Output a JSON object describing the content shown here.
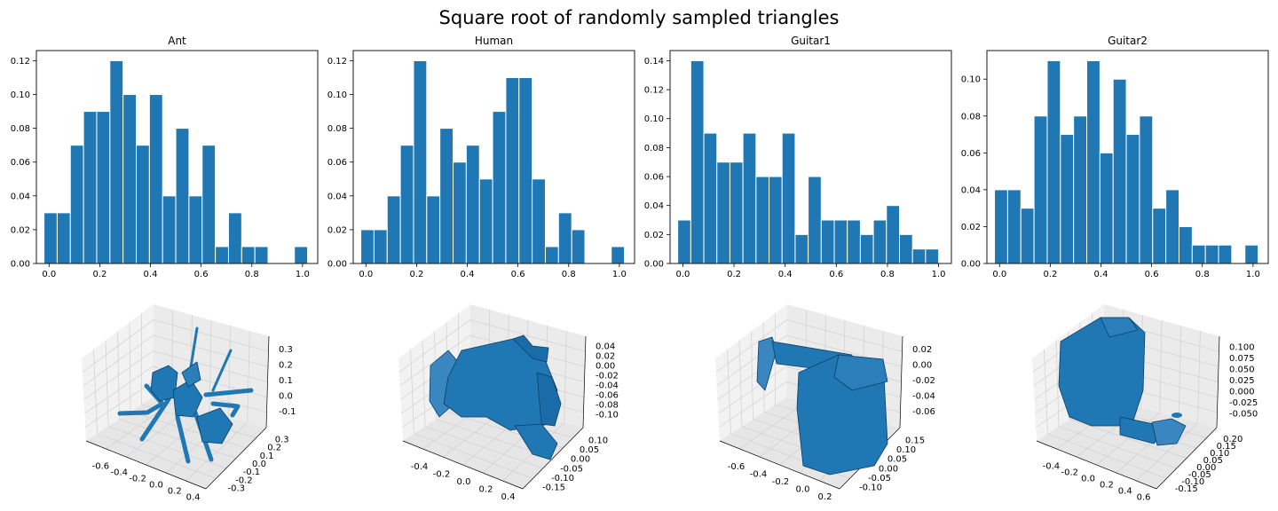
{
  "figure_title": "Square root of randomly sampled triangles",
  "colors": {
    "bar": "#1f77b4",
    "bar_edge": "#ffffff",
    "mesh": "#1f77b4",
    "mesh_dark": "#0d3f66",
    "axis": "#000000"
  },
  "chart_data": [
    {
      "type": "bar",
      "title": "Ant",
      "xlabel": "",
      "ylabel": "",
      "x_ticks": [
        "0.0",
        "0.2",
        "0.4",
        "0.6",
        "0.8",
        "1.0"
      ],
      "y_ticks": [
        "0.00",
        "0.02",
        "0.04",
        "0.06",
        "0.08",
        "0.10",
        "0.12"
      ],
      "xlim": [
        -0.05,
        1.06
      ],
      "ylim": [
        0,
        0.126
      ],
      "bin_edges": [
        -0.02,
        0.032,
        0.084,
        0.136,
        0.188,
        0.24,
        0.292,
        0.344,
        0.396,
        0.448,
        0.5,
        0.552,
        0.604,
        0.656,
        0.708,
        0.76,
        0.812,
        0.864,
        0.916,
        0.968,
        1.02
      ],
      "values": [
        0.03,
        0.03,
        0.07,
        0.09,
        0.09,
        0.12,
        0.1,
        0.07,
        0.1,
        0.04,
        0.08,
        0.04,
        0.07,
        0.01,
        0.03,
        0.01,
        0.01,
        0.0,
        0.0,
        0.01
      ],
      "grid": false
    },
    {
      "type": "bar",
      "title": "Human",
      "xlabel": "",
      "ylabel": "",
      "x_ticks": [
        "0.0",
        "0.2",
        "0.4",
        "0.6",
        "0.8",
        "1.0"
      ],
      "y_ticks": [
        "0.00",
        "0.02",
        "0.04",
        "0.06",
        "0.08",
        "0.10",
        "0.12"
      ],
      "xlim": [
        -0.05,
        1.06
      ],
      "ylim": [
        0,
        0.126
      ],
      "bin_edges": [
        -0.02,
        0.032,
        0.084,
        0.136,
        0.188,
        0.24,
        0.292,
        0.344,
        0.396,
        0.448,
        0.5,
        0.552,
        0.604,
        0.656,
        0.708,
        0.76,
        0.812,
        0.864,
        0.916,
        0.968,
        1.02
      ],
      "values": [
        0.02,
        0.02,
        0.04,
        0.07,
        0.12,
        0.04,
        0.08,
        0.06,
        0.07,
        0.05,
        0.09,
        0.11,
        0.11,
        0.05,
        0.01,
        0.03,
        0.02,
        0.0,
        0.0,
        0.01
      ],
      "grid": false
    },
    {
      "type": "bar",
      "title": "Guitar1",
      "xlabel": "",
      "ylabel": "",
      "x_ticks": [
        "0.0",
        "0.2",
        "0.4",
        "0.6",
        "0.8",
        "1.0"
      ],
      "y_ticks": [
        "0.00",
        "0.02",
        "0.04",
        "0.06",
        "0.08",
        "0.10",
        "0.12",
        "0.14"
      ],
      "xlim": [
        -0.05,
        1.05
      ],
      "ylim": [
        0,
        0.147
      ],
      "bin_edges": [
        -0.02,
        0.031,
        0.082,
        0.133,
        0.184,
        0.235,
        0.286,
        0.337,
        0.388,
        0.439,
        0.49,
        0.541,
        0.592,
        0.643,
        0.694,
        0.745,
        0.796,
        0.847,
        0.898,
        0.949,
        1.0
      ],
      "values": [
        0.03,
        0.14,
        0.09,
        0.07,
        0.07,
        0.09,
        0.06,
        0.06,
        0.09,
        0.02,
        0.06,
        0.03,
        0.03,
        0.03,
        0.02,
        0.03,
        0.04,
        0.02,
        0.01,
        0.01
      ],
      "grid": false
    },
    {
      "type": "bar",
      "title": "Guitar2",
      "xlabel": "",
      "ylabel": "",
      "x_ticks": [
        "0.0",
        "0.2",
        "0.4",
        "0.6",
        "0.8",
        "1.0"
      ],
      "y_ticks": [
        "0.00",
        "0.02",
        "0.04",
        "0.06",
        "0.08",
        "0.10"
      ],
      "xlim": [
        -0.05,
        1.06
      ],
      "ylim": [
        0,
        0.1155
      ],
      "bin_edges": [
        -0.02,
        0.032,
        0.084,
        0.136,
        0.188,
        0.24,
        0.292,
        0.344,
        0.396,
        0.448,
        0.5,
        0.552,
        0.604,
        0.656,
        0.708,
        0.76,
        0.812,
        0.864,
        0.916,
        0.968,
        1.02
      ],
      "values": [
        0.04,
        0.04,
        0.03,
        0.08,
        0.11,
        0.07,
        0.08,
        0.11,
        0.06,
        0.1,
        0.07,
        0.08,
        0.03,
        0.04,
        0.02,
        0.01,
        0.01,
        0.01,
        0.0,
        0.01
      ],
      "grid": false
    }
  ],
  "mesh_plots": [
    {
      "name": "Ant",
      "x_ticks": [
        "-0.6",
        "-0.4",
        "-0.2",
        "0.0",
        "0.2",
        "0.4"
      ],
      "y_ticks": [
        "0.3",
        "0.2",
        "0.1",
        "0.0",
        "-0.1",
        "-0.2",
        "-0.3"
      ],
      "z_ticks": [
        "0.3",
        "0.2",
        "0.1",
        "0.0",
        "-0.1"
      ]
    },
    {
      "name": "Human",
      "x_ticks": [
        "-0.4",
        "-0.2",
        "0.0",
        "0.2",
        "0.4"
      ],
      "y_ticks": [
        "0.10",
        "0.05",
        "0.00",
        "-0.05",
        "-0.10",
        "-0.15"
      ],
      "z_ticks": [
        "0.04",
        "0.02",
        "0.00",
        "-0.02",
        "-0.04",
        "-0.06",
        "-0.08",
        "-0.10"
      ]
    },
    {
      "name": "Guitar1",
      "x_ticks": [
        "-0.6",
        "-0.4",
        "-0.2",
        "0.0",
        "0.2"
      ],
      "y_ticks": [
        "0.15",
        "0.10",
        "0.05",
        "0.00",
        "-0.05",
        "-0.10"
      ],
      "z_ticks": [
        "0.02",
        "0.00",
        "-0.02",
        "-0.04",
        "-0.06"
      ]
    },
    {
      "name": "Guitar2",
      "x_ticks": [
        "-0.4",
        "-0.2",
        "0.0",
        "0.2",
        "0.4",
        "0.6"
      ],
      "y_ticks": [
        "0.20",
        "0.15",
        "0.10",
        "0.05",
        "0.00",
        "-0.05",
        "-0.10",
        "-0.15"
      ],
      "z_ticks": [
        "0.100",
        "0.075",
        "0.050",
        "0.025",
        "0.000",
        "-0.025",
        "-0.050"
      ]
    }
  ]
}
